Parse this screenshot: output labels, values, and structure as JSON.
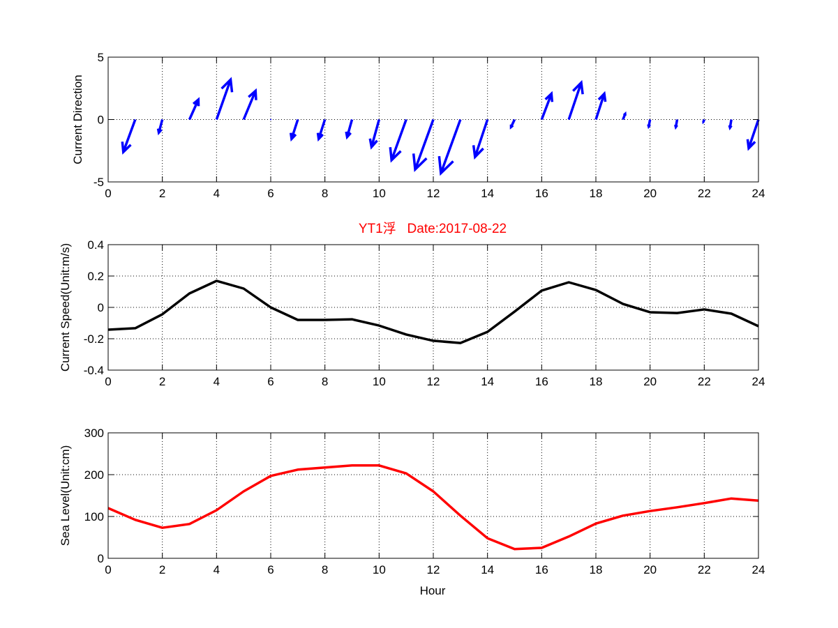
{
  "chart_data": [
    {
      "type": "quiver",
      "ylabel": "Current Direction",
      "xlim": [
        0,
        24
      ],
      "ylim": [
        -5,
        5
      ],
      "xticks": [
        0,
        2,
        4,
        6,
        8,
        10,
        12,
        14,
        16,
        18,
        20,
        22,
        24
      ],
      "yticks": [
        -5,
        0,
        5
      ],
      "grid": true,
      "color": "#0000ff",
      "x": [
        1,
        2,
        3,
        4,
        5,
        6,
        7,
        8,
        9,
        10,
        11,
        12,
        13,
        14,
        15,
        16,
        17,
        18,
        19,
        20,
        21,
        22,
        23,
        24
      ],
      "u": [
        -0.44,
        -0.13,
        0.33,
        0.52,
        0.44,
        0.0,
        -0.23,
        -0.23,
        -0.18,
        -0.28,
        -0.54,
        -0.67,
        -0.72,
        -0.46,
        -0.13,
        0.36,
        0.46,
        0.31,
        0.08,
        -0.05,
        -0.05,
        -0.03,
        -0.05,
        -0.36
      ],
      "v": [
        -2.6,
        -1.05,
        1.6,
        3.2,
        2.3,
        0.0,
        -1.55,
        -1.55,
        -1.4,
        -2.2,
        -3.25,
        -4.0,
        -4.3,
        -3.0,
        -0.6,
        2.07,
        2.96,
        2.07,
        0.45,
        -0.55,
        -0.6,
        -0.17,
        -0.65,
        -2.3
      ]
    },
    {
      "type": "line",
      "title": "YT1浮   Date:2017-08-22",
      "ylabel": "Current Speed(Unit:m/s)",
      "xlim": [
        0,
        24
      ],
      "ylim": [
        -0.4,
        0.4
      ],
      "xticks": [
        0,
        2,
        4,
        6,
        8,
        10,
        12,
        14,
        16,
        18,
        20,
        22,
        24
      ],
      "yticks": [
        -0.4,
        -0.2,
        0,
        0.2,
        0.4
      ],
      "ytick_labels": [
        "-0.4",
        "-0.2",
        "0",
        "0.2",
        "0.4"
      ],
      "grid": true,
      "color": "#000000",
      "x": [
        0,
        1,
        2,
        3,
        4,
        5,
        6,
        7,
        8,
        9,
        10,
        11,
        12,
        13,
        14,
        15,
        16,
        17,
        18,
        19,
        20,
        21,
        22,
        23,
        24
      ],
      "y": [
        -0.142,
        -0.133,
        -0.044,
        0.089,
        0.169,
        0.12,
        0.0,
        -0.08,
        -0.08,
        -0.076,
        -0.116,
        -0.173,
        -0.213,
        -0.227,
        -0.156,
        -0.027,
        0.107,
        0.16,
        0.111,
        0.022,
        -0.031,
        -0.036,
        -0.013,
        -0.04,
        -0.12
      ]
    },
    {
      "type": "line",
      "xlabel": "Hour",
      "ylabel": "Sea Level(Unit:cm)",
      "xlim": [
        0,
        24
      ],
      "ylim": [
        0,
        300
      ],
      "xticks": [
        0,
        2,
        4,
        6,
        8,
        10,
        12,
        14,
        16,
        18,
        20,
        22,
        24
      ],
      "yticks": [
        0,
        100,
        200,
        300
      ],
      "ytick_labels": [
        "0",
        "100",
        "200",
        "300"
      ],
      "grid": true,
      "color": "#ff0000",
      "x": [
        0,
        1,
        2,
        3,
        4,
        5,
        6,
        7,
        8,
        9,
        10,
        11,
        12,
        13,
        14,
        15,
        16,
        17,
        18,
        19,
        20,
        21,
        22,
        23,
        24
      ],
      "y": [
        120,
        92,
        73,
        82,
        115,
        160,
        197,
        212,
        217,
        222,
        222,
        203,
        160,
        102,
        48,
        22,
        25,
        52,
        83,
        102,
        113,
        122,
        132,
        143,
        138
      ]
    }
  ]
}
